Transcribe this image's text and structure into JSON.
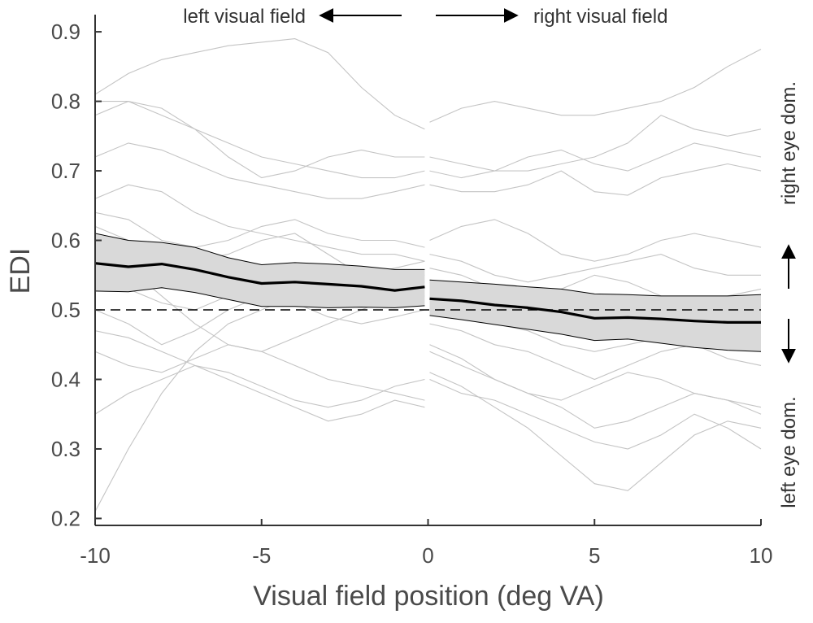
{
  "chart_data": {
    "type": "line",
    "title": "",
    "xlabel": "Visual field position (deg VA)",
    "ylabel": "EDI",
    "xlim": [
      -10,
      10
    ],
    "ylim": [
      0.19,
      0.92
    ],
    "xticks": [
      -10,
      -5,
      0,
      5,
      10
    ],
    "xtick_labels": [
      "-10",
      "-5",
      "0",
      "5",
      "10"
    ],
    "yticks": [
      0.2,
      0.3,
      0.4,
      0.5,
      0.6,
      0.7,
      0.8,
      0.9
    ],
    "ytick_labels": [
      "0.2",
      "0.3",
      "0.4",
      "0.5",
      "0.6",
      "0.7",
      "0.8",
      "0.9"
    ],
    "grid": false,
    "reference_line": {
      "y": 0.5,
      "style": "dashed",
      "color": "#000000"
    },
    "annotations": {
      "left_field": "left visual field",
      "right_field": "right visual field",
      "right_eye": "right eye dom.",
      "left_eye": "left eye dom."
    },
    "mean_series": {
      "color": "#000000",
      "left": {
        "x": [
          -10,
          -9,
          -8,
          -7,
          -6,
          -5,
          -4,
          -3,
          -2,
          -1,
          -0.1
        ],
        "y": [
          0.567,
          0.562,
          0.566,
          0.558,
          0.547,
          0.538,
          0.54,
          0.537,
          0.534,
          0.528,
          0.533
        ]
      },
      "right": {
        "x": [
          0.05,
          1,
          2,
          3,
          4,
          5,
          6,
          7,
          8,
          9,
          10
        ],
        "y": [
          0.516,
          0.513,
          0.507,
          0.503,
          0.497,
          0.488,
          0.489,
          0.487,
          0.484,
          0.482,
          0.482
        ]
      }
    },
    "confidence_band": {
      "fill": "#d9d9d9",
      "edge": "#000000",
      "left": {
        "x": [
          -10,
          -9,
          -8,
          -7,
          -6,
          -5,
          -4,
          -3,
          -2,
          -1,
          -0.1
        ],
        "upper": [
          0.61,
          0.6,
          0.597,
          0.59,
          0.575,
          0.565,
          0.568,
          0.566,
          0.563,
          0.558,
          0.558
        ],
        "lower": [
          0.527,
          0.526,
          0.532,
          0.525,
          0.515,
          0.505,
          0.505,
          0.503,
          0.504,
          0.503,
          0.506
        ]
      },
      "right": {
        "x": [
          0.05,
          1,
          2,
          3,
          4,
          5,
          6,
          7,
          8,
          9,
          10
        ],
        "upper": [
          0.543,
          0.54,
          0.537,
          0.533,
          0.53,
          0.523,
          0.522,
          0.52,
          0.52,
          0.52,
          0.522
        ],
        "lower": [
          0.492,
          0.486,
          0.479,
          0.472,
          0.465,
          0.456,
          0.458,
          0.452,
          0.446,
          0.442,
          0.44
        ]
      }
    },
    "individual_series": {
      "color": "#c4c4c4",
      "x_left": [
        -10,
        -9,
        -8,
        -7,
        -6,
        -5,
        -4,
        -3,
        -2,
        -1,
        -0.1
      ],
      "x_right": [
        0.05,
        1,
        2,
        3,
        4,
        5,
        6,
        7,
        8,
        9,
        10
      ],
      "series": [
        {
          "left": [
            0.81,
            0.84,
            0.86,
            0.87,
            0.88,
            0.885,
            0.89,
            0.87,
            0.82,
            0.78,
            0.76
          ],
          "right": [
            0.77,
            0.79,
            0.8,
            0.79,
            0.78,
            0.78,
            0.79,
            0.8,
            0.82,
            0.85,
            0.875
          ]
        },
        {
          "left": [
            0.8,
            0.8,
            0.78,
            0.76,
            0.74,
            0.72,
            0.71,
            0.7,
            0.69,
            0.69,
            0.7
          ],
          "right": [
            0.72,
            0.71,
            0.7,
            0.7,
            0.71,
            0.72,
            0.74,
            0.78,
            0.76,
            0.75,
            0.76
          ]
        },
        {
          "left": [
            0.78,
            0.8,
            0.79,
            0.76,
            0.72,
            0.69,
            0.7,
            0.72,
            0.73,
            0.72,
            0.72
          ],
          "right": [
            0.7,
            0.69,
            0.7,
            0.72,
            0.73,
            0.71,
            0.7,
            0.72,
            0.74,
            0.73,
            0.72
          ]
        },
        {
          "left": [
            0.72,
            0.74,
            0.73,
            0.71,
            0.69,
            0.68,
            0.67,
            0.66,
            0.66,
            0.67,
            0.68
          ],
          "right": [
            0.68,
            0.67,
            0.67,
            0.68,
            0.7,
            0.67,
            0.665,
            0.69,
            0.7,
            0.71,
            0.7
          ]
        },
        {
          "left": [
            0.66,
            0.68,
            0.67,
            0.64,
            0.62,
            0.61,
            0.6,
            0.59,
            0.58,
            0.58,
            0.57
          ],
          "right": [
            0.6,
            0.62,
            0.63,
            0.61,
            0.58,
            0.57,
            0.58,
            0.6,
            0.61,
            0.6,
            0.59
          ]
        },
        {
          "left": [
            0.64,
            0.63,
            0.6,
            0.59,
            0.6,
            0.62,
            0.63,
            0.61,
            0.6,
            0.6,
            0.59
          ],
          "right": [
            0.58,
            0.57,
            0.55,
            0.54,
            0.55,
            0.56,
            0.57,
            0.58,
            0.56,
            0.55,
            0.55
          ]
        },
        {
          "left": [
            0.62,
            0.6,
            0.58,
            0.57,
            0.58,
            0.6,
            0.61,
            0.58,
            0.55,
            0.56,
            0.57
          ],
          "right": [
            0.56,
            0.55,
            0.53,
            0.52,
            0.53,
            0.55,
            0.54,
            0.52,
            0.51,
            0.52,
            0.53
          ]
        },
        {
          "left": [
            0.58,
            0.56,
            0.52,
            0.48,
            0.45,
            0.44,
            0.46,
            0.48,
            0.5,
            0.52,
            0.53
          ],
          "right": [
            0.52,
            0.5,
            0.48,
            0.47,
            0.45,
            0.44,
            0.45,
            0.46,
            0.47,
            0.45,
            0.44
          ]
        },
        {
          "left": [
            0.55,
            0.53,
            0.51,
            0.5,
            0.52,
            0.54,
            0.55,
            0.53,
            0.52,
            0.51,
            0.52
          ],
          "right": [
            0.5,
            0.49,
            0.48,
            0.49,
            0.5,
            0.51,
            0.5,
            0.49,
            0.48,
            0.47,
            0.46
          ]
        },
        {
          "left": [
            0.5,
            0.48,
            0.45,
            0.47,
            0.5,
            0.52,
            0.51,
            0.49,
            0.48,
            0.49,
            0.5
          ],
          "right": [
            0.48,
            0.47,
            0.45,
            0.44,
            0.42,
            0.4,
            0.42,
            0.44,
            0.45,
            0.43,
            0.42
          ]
        },
        {
          "left": [
            0.47,
            0.46,
            0.44,
            0.42,
            0.4,
            0.38,
            0.36,
            0.34,
            0.35,
            0.37,
            0.36
          ],
          "right": [
            0.45,
            0.43,
            0.4,
            0.38,
            0.36,
            0.33,
            0.34,
            0.36,
            0.38,
            0.37,
            0.35
          ]
        },
        {
          "left": [
            0.44,
            0.42,
            0.41,
            0.43,
            0.45,
            0.44,
            0.42,
            0.4,
            0.39,
            0.38,
            0.37
          ],
          "right": [
            0.41,
            0.39,
            0.36,
            0.33,
            0.29,
            0.25,
            0.24,
            0.28,
            0.32,
            0.34,
            0.33
          ]
        },
        {
          "left": [
            0.35,
            0.38,
            0.4,
            0.42,
            0.41,
            0.39,
            0.37,
            0.36,
            0.37,
            0.39,
            0.4
          ],
          "right": [
            0.4,
            0.38,
            0.37,
            0.35,
            0.33,
            0.31,
            0.3,
            0.32,
            0.35,
            0.33,
            0.3
          ]
        },
        {
          "left": [
            0.21,
            0.3,
            0.38,
            0.44,
            0.48,
            0.5,
            0.52,
            0.54,
            0.55,
            0.55,
            0.54
          ],
          "right": [
            0.44,
            0.42,
            0.4,
            0.38,
            0.37,
            0.39,
            0.41,
            0.4,
            0.38,
            0.37,
            0.36
          ]
        },
        {
          "left": [
            0.57,
            0.55,
            0.55,
            0.56,
            0.55,
            0.53,
            0.54,
            0.56,
            0.55,
            0.54,
            0.55
          ],
          "right": [
            0.54,
            0.53,
            0.51,
            0.5,
            0.49,
            0.48,
            0.47,
            0.46,
            0.46,
            0.45,
            0.45
          ]
        }
      ]
    }
  }
}
